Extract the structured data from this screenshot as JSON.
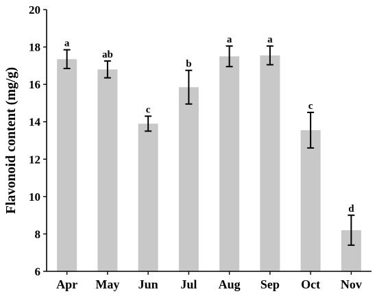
{
  "chart_data": {
    "type": "bar",
    "title": "",
    "xlabel": "",
    "ylabel": "Flavonoid content (mg/g)",
    "ylim": [
      6,
      20
    ],
    "yticks": [
      6,
      8,
      10,
      12,
      14,
      16,
      18,
      20
    ],
    "categories": [
      "Apr",
      "May",
      "Jun",
      "Jul",
      "Aug",
      "Sep",
      "Oct",
      "Nov"
    ],
    "values": [
      17.35,
      16.8,
      13.9,
      15.85,
      17.5,
      17.55,
      13.55,
      8.2
    ],
    "errors": [
      0.5,
      0.45,
      0.4,
      0.9,
      0.55,
      0.5,
      0.95,
      0.8
    ],
    "significance": [
      "a",
      "ab",
      "c",
      "b",
      "a",
      "a",
      "c",
      "d"
    ],
    "bar_color": "#c8c8c8",
    "grid": false,
    "legend": "none"
  }
}
